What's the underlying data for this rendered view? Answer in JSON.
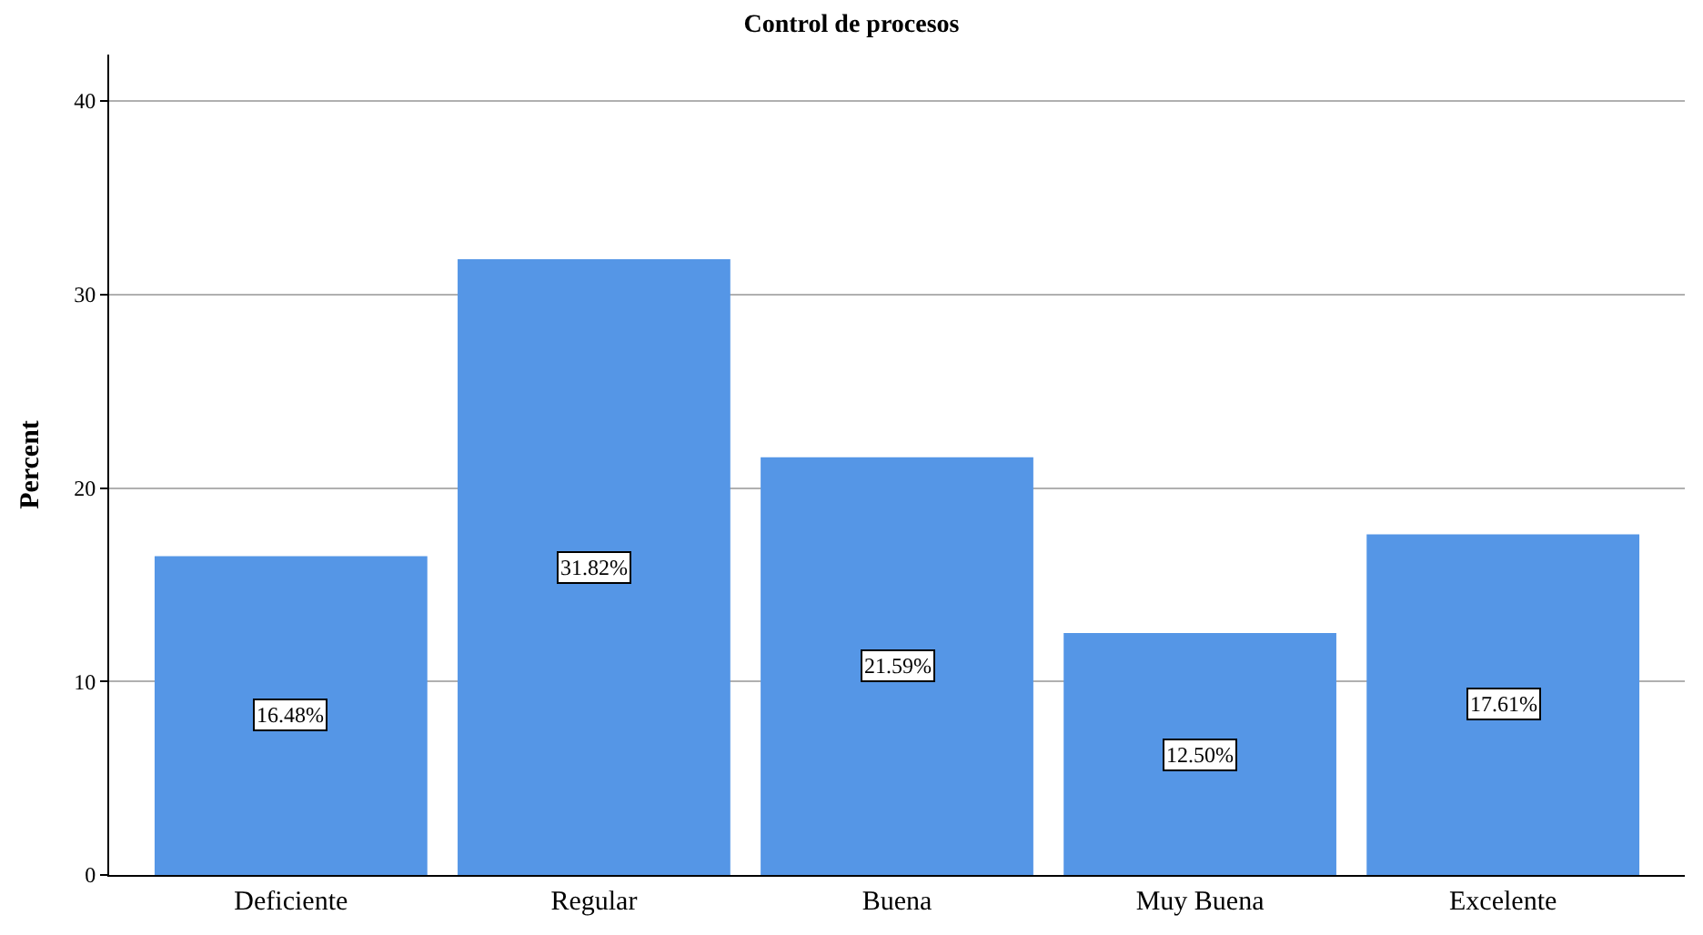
{
  "chart_data": {
    "type": "bar",
    "title": "Control de procesos",
    "ylabel": "Percent",
    "categories": [
      "Deficiente",
      "Regular",
      "Buena",
      "Muy Buena",
      "Excelente"
    ],
    "values": [
      16.48,
      31.82,
      21.59,
      12.5,
      17.61
    ],
    "value_labels": [
      "16.48%",
      "31.82%",
      "21.59%",
      "12.50%",
      "17.61%"
    ],
    "color": "#5596e6",
    "ylim": [
      0,
      42.4
    ],
    "yticks": [
      0,
      10,
      20,
      30,
      40
    ],
    "grid": "y",
    "legend": false
  }
}
